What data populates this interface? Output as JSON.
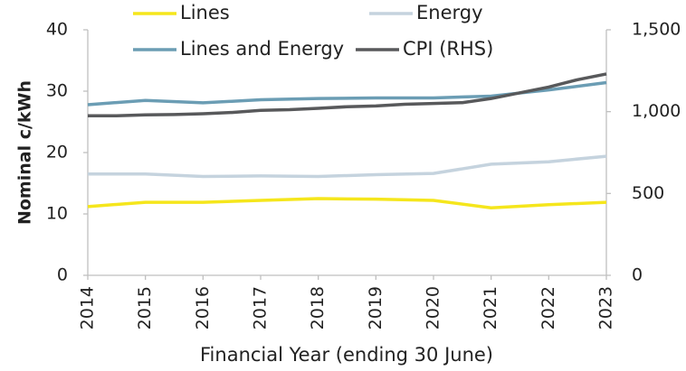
{
  "chart_data": {
    "type": "line",
    "x_label": "Financial Year (ending 30 June)",
    "y_label": "Nominal c/kWh",
    "xlim": [
      2014,
      2023
    ],
    "xticks": [
      2014,
      2015,
      2016,
      2017,
      2018,
      2019,
      2020,
      2021,
      2022,
      2023
    ],
    "ylim": [
      0,
      40
    ],
    "yticks": [
      0,
      10,
      20,
      30,
      40
    ],
    "y2lim": [
      0,
      1500
    ],
    "y2ticks": [
      0,
      500,
      {
        "value": 1000,
        "label": "1,000"
      },
      {
        "value": 1500,
        "label": "1,500"
      }
    ],
    "series": [
      {
        "name": "Lines",
        "color": "#f5e61c",
        "x": [
          2014,
          2015,
          2016,
          2017,
          2018,
          2019,
          2020,
          2021,
          2022,
          2023
        ],
        "values": [
          11.2,
          11.9,
          11.9,
          12.2,
          12.5,
          12.4,
          12.2,
          11.0,
          11.5,
          11.9
        ]
      },
      {
        "name": "Energy",
        "color": "#c5d3de",
        "x": [
          2014,
          2015,
          2016,
          2017,
          2018,
          2019,
          2020,
          2021,
          2022,
          2023
        ],
        "values": [
          16.5,
          16.5,
          16.1,
          16.2,
          16.1,
          16.4,
          16.6,
          18.1,
          18.5,
          19.4
        ]
      },
      {
        "name": "Lines and Energy",
        "color": "#6b9db4",
        "x": [
          2014,
          2015,
          2016,
          2017,
          2018,
          2019,
          2020,
          2021,
          2022,
          2023
        ],
        "values": [
          27.8,
          28.5,
          28.1,
          28.6,
          28.8,
          28.9,
          28.9,
          29.2,
          30.2,
          31.4
        ]
      },
      {
        "name": "CPI (RHS)",
        "color": "#58595b",
        "axis": "y2",
        "x": [
          2014,
          2014.5,
          2015,
          2015.5,
          2016,
          2016.5,
          2017,
          2017.5,
          2018,
          2018.5,
          2019,
          2019.5,
          2020,
          2020.5,
          2021,
          2021.5,
          2022,
          2022.5,
          2023
        ],
        "values": [
          975,
          975,
          980,
          982,
          987,
          995,
          1008,
          1012,
          1020,
          1030,
          1035,
          1045,
          1050,
          1055,
          1080,
          1115,
          1150,
          1195,
          1230
        ]
      }
    ]
  }
}
